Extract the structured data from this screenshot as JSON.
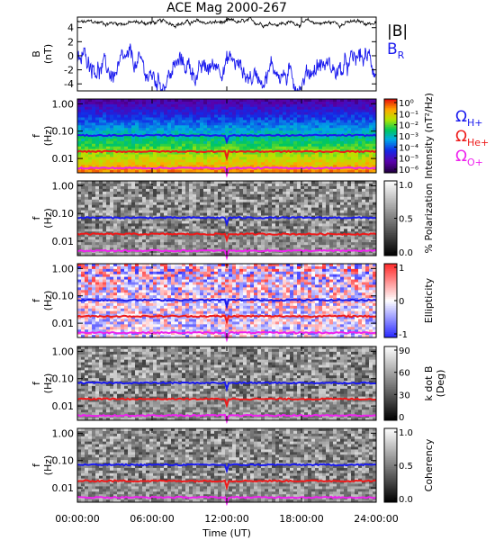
{
  "chart_data": {
    "type": "heatmap",
    "title": "ACE Mag 2000-267",
    "xlabel": "Time (UT)",
    "x_ticks": [
      "00:00:00",
      "06:00:00",
      "12:00:00",
      "18:00:00",
      "24:00:00"
    ],
    "x_range_hours": [
      0,
      24
    ],
    "line_panel": {
      "ylabel_top": "B",
      "ylabel_bottom": "(nT)",
      "y_ticks": [
        "4",
        "2",
        "0",
        "-2",
        "-4"
      ],
      "ylim": [
        -5,
        5.5
      ],
      "series": [
        {
          "label_main": "|B|",
          "label_sub": "",
          "color": "#000000",
          "level": 4.7,
          "noise": 0.35
        },
        {
          "label_main": "B",
          "label_sub": "R",
          "color": "#1a1aee",
          "level": -2.0,
          "noise": 1.6
        }
      ]
    },
    "spectral_panels": [
      {
        "name": "intensity",
        "ylabel_top": "f",
        "ylabel_bottom": "(Hz)",
        "y_ticks": [
          "1.00",
          "0.10",
          "0.01"
        ],
        "ylim_hz": [
          0.003,
          1.5
        ],
        "colorscale": "rainbow",
        "colorbar_label": "Intensity (nT²/Hz)",
        "colorbar_ticks": [
          "10⁰",
          "10⁻¹",
          "10⁻²",
          "10⁻³",
          "10⁻⁴",
          "10⁻⁵",
          "10⁻⁶"
        ]
      },
      {
        "name": "polarization",
        "ylabel_top": "f",
        "ylabel_bottom": "(Hz)",
        "y_ticks": [
          "1.00",
          "0.10",
          "0.01"
        ],
        "ylim_hz": [
          0.003,
          1.5
        ],
        "colorscale": "gray",
        "colorbar_label": "% Polarization",
        "colorbar_ticks": [
          "1.0",
          "0.5",
          "0.0"
        ]
      },
      {
        "name": "ellipticity",
        "ylabel_top": "f",
        "ylabel_bottom": "(Hz)",
        "y_ticks": [
          "1.00",
          "0.10",
          "0.01"
        ],
        "ylim_hz": [
          0.003,
          1.5
        ],
        "colorscale": "bwr",
        "colorbar_label": "Ellipticity",
        "colorbar_ticks": [
          "1",
          "0",
          "-1"
        ]
      },
      {
        "name": "kdotb",
        "ylabel_top": "f",
        "ylabel_bottom": "(Hz)",
        "y_ticks": [
          "1.00",
          "0.10",
          "0.01"
        ],
        "ylim_hz": [
          0.003,
          1.5
        ],
        "colorscale": "gray",
        "colorbar_label": "k dot B (Deg)",
        "colorbar_label_lines": [
          "k dot B",
          "(Deg)"
        ],
        "colorbar_ticks": [
          "90",
          "60",
          "30",
          "0"
        ]
      },
      {
        "name": "coherency",
        "ylabel_top": "f",
        "ylabel_bottom": "(Hz)",
        "y_ticks": [
          "1.00",
          "0.10",
          "0.01"
        ],
        "ylim_hz": [
          0.003,
          1.5
        ],
        "colorscale": "gray",
        "colorbar_label": "Coherency",
        "colorbar_ticks": [
          "1.0",
          "0.5",
          "0.0"
        ]
      }
    ],
    "gyrofrequency_lines": [
      {
        "symbol": "Ω",
        "sub": "H+",
        "color": "#1a1aee",
        "freq_hz": 0.07
      },
      {
        "symbol": "Ω",
        "sub": "He+",
        "color": "#ee1a1a",
        "freq_hz": 0.018
      },
      {
        "symbol": "Ω",
        "sub": "O+",
        "color": "#ee22ee",
        "freq_hz": 0.0045
      }
    ],
    "colors": {
      "frame": "#000000",
      "background": "#ffffff"
    }
  }
}
